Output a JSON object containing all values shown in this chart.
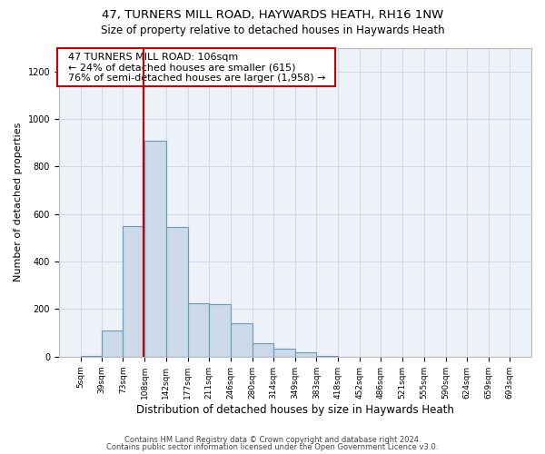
{
  "title_line1": "47, TURNERS MILL ROAD, HAYWARDS HEATH, RH16 1NW",
  "title_line2": "Size of property relative to detached houses in Haywards Heath",
  "xlabel": "Distribution of detached houses by size in Haywards Heath",
  "ylabel": "Number of detached properties",
  "footer_line1": "Contains HM Land Registry data © Crown copyright and database right 2024.",
  "footer_line2": "Contains public sector information licensed under the Open Government Licence v3.0.",
  "annotation_line1": "47 TURNERS MILL ROAD: 106sqm",
  "annotation_line2": "← 24% of detached houses are smaller (615)",
  "annotation_line3": "76% of semi-detached houses are larger (1,958) →",
  "bar_color": "#ccd9e8",
  "bar_edge_color": "#6699bb",
  "vline_color": "#cc0000",
  "vline_x": 106,
  "bin_edges": [
    5,
    39,
    73,
    108,
    142,
    177,
    211,
    246,
    280,
    314,
    349,
    383,
    418,
    452,
    486,
    521,
    555,
    590,
    624,
    659,
    693
  ],
  "bar_heights": [
    5,
    110,
    550,
    910,
    545,
    225,
    220,
    140,
    55,
    33,
    20,
    5,
    0,
    0,
    0,
    0,
    0,
    0,
    0,
    0
  ],
  "ylim": [
    0,
    1300
  ],
  "yticks": [
    0,
    200,
    400,
    600,
    800,
    1000,
    1200
  ],
  "grid_color": "#d0d8ea",
  "bg_color": "#edf1f8",
  "title_fontsize": 9.5,
  "subtitle_fontsize": 8.5,
  "ylabel_fontsize": 8,
  "xlabel_fontsize": 8.5,
  "tick_fontsize": 6.5,
  "footer_fontsize": 6,
  "annot_fontsize": 8,
  "figsize": [
    6.0,
    5.0
  ],
  "dpi": 100
}
